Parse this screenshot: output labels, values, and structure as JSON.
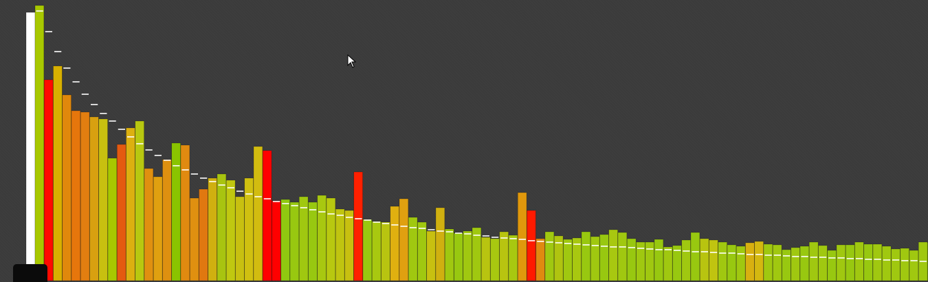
{
  "chart_data": {
    "type": "bar",
    "title": "",
    "xlabel": "",
    "ylabel": "",
    "ylim": [
      0,
      400
    ],
    "grid": false,
    "reference_bar_value": 390,
    "colors": {
      "reference": "#ffffff",
      "background": "#3b3b3b",
      "low": "#ff0000",
      "high": "#8fd000",
      "marker": "#ffffff"
    },
    "values": [
      400,
      292,
      312,
      270,
      247,
      245,
      238,
      235,
      178,
      198,
      222,
      232,
      163,
      151,
      176,
      200,
      197,
      120,
      133,
      149,
      155,
      146,
      122,
      149,
      195,
      189,
      116,
      118,
      114,
      122,
      114,
      124,
      120,
      104,
      102,
      158,
      89,
      86,
      85,
      108,
      119,
      92,
      85,
      72,
      106,
      75,
      69,
      72,
      77,
      63,
      61,
      71,
      66,
      128,
      102,
      61,
      71,
      65,
      60,
      62,
      71,
      64,
      67,
      74,
      70,
      61,
      56,
      56,
      60,
      49,
      51,
      59,
      70,
      61,
      59,
      56,
      52,
      50,
      55,
      57,
      53,
      52,
      45,
      48,
      50,
      56,
      51,
      44,
      52,
      52,
      56,
      53,
      53,
      50,
      46,
      47,
      44,
      56,
      55,
      56,
      54,
      52,
      40,
      44,
      41,
      42,
      40,
      45,
      44,
      44
    ],
    "average_markers": [
      392,
      362,
      333,
      309,
      289,
      271,
      256,
      243,
      232,
      220,
      209,
      199,
      190,
      182,
      175,
      167,
      161,
      155,
      149,
      144,
      139,
      135,
      130,
      126,
      122,
      119,
      115,
      112,
      109,
      106,
      103,
      100,
      97,
      95,
      92,
      90,
      88,
      85,
      83,
      81,
      79,
      77,
      76,
      74,
      72,
      71,
      69,
      68,
      66,
      65,
      63,
      62,
      61,
      60,
      58,
      57,
      56,
      55,
      54,
      53,
      52,
      51,
      50,
      49,
      49,
      48,
      47,
      46,
      45,
      45,
      44,
      43,
      42,
      42,
      41,
      40,
      40,
      39,
      38,
      38,
      37,
      37,
      36,
      35,
      35,
      34,
      34,
      33,
      33,
      32,
      32,
      31,
      31,
      30,
      30,
      29,
      29,
      28,
      28,
      28,
      27,
      27,
      26,
      26,
      26,
      25,
      25,
      25,
      24,
      24
    ],
    "bar_colors": [
      "#a8c800",
      "#ff0a00",
      "#d8b000",
      "#e0880c",
      "#e6760c",
      "#e27e10",
      "#d8a010",
      "#c8c010",
      "#a8c800",
      "#e45a10",
      "#dcb010",
      "#b8c810",
      "#e09010",
      "#e0a010",
      "#de9010",
      "#8ac400",
      "#e08a10",
      "#e09010",
      "#e07810",
      "#d0b010",
      "#a8c410",
      "#c0c810",
      "#c8c010",
      "#d0c010",
      "#d2bc10",
      "#ff0000",
      "#ff0000",
      "#90c810",
      "#98c810",
      "#a0c810",
      "#98c810",
      "#a8c810",
      "#b8c810",
      "#c0c410",
      "#c8c010",
      "#ff2000",
      "#98c810",
      "#a8c810",
      "#b8c410",
      "#e0b010",
      "#e0a010",
      "#a0c810",
      "#a0c810",
      "#c8c010",
      "#d0b010",
      "#a0c810",
      "#98c810",
      "#a0c810",
      "#a0c810",
      "#b8c410",
      "#a8c810",
      "#b8c410",
      "#a8c810",
      "#e0980c",
      "#ff1a00",
      "#e08a10",
      "#a0c810",
      "#b0c410",
      "#a0c810",
      "#a8c810",
      "#98c810",
      "#a0c810",
      "#98c810",
      "#a8c810",
      "#a0c810",
      "#98c810",
      "#a0c810",
      "#a0c810",
      "#98c810",
      "#a0c810",
      "#98c810",
      "#a0c810",
      "#98c810",
      "#b8c410",
      "#c0c410",
      "#a0c810",
      "#98c810",
      "#a0c810",
      "#d8b010",
      "#d4b810",
      "#a0c810",
      "#a0c810",
      "#98c810",
      "#a0c810",
      "#98c810",
      "#a0c810",
      "#a0c810",
      "#98c810",
      "#a0c810",
      "#98c810",
      "#a0c810",
      "#98c810",
      "#a0c810",
      "#a0c810",
      "#a0c810",
      "#a0c810",
      "#a0c810",
      "#a0c810",
      "#98c810",
      "#a0c810",
      "#a0c810",
      "#98c810",
      "#a0c810",
      "#a0c810",
      "#98c810",
      "#a0c810",
      "#98c810",
      "#a0c810",
      "#a0c810",
      "#a0c810"
    ]
  }
}
